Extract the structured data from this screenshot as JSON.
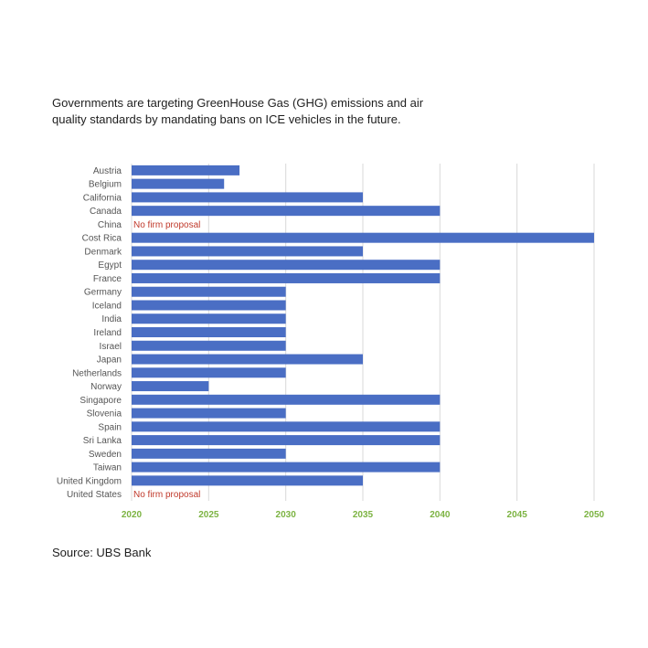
{
  "headline": {
    "line1": "Governments are targeting GreenHouse Gas (GHG) emissions and air",
    "line2": "quality standards by mandating bans on ICE vehicles in the future."
  },
  "source": "Source: UBS Bank",
  "chart_data": {
    "type": "bar",
    "orientation": "horizontal",
    "categories": [
      "Austria",
      "Belgium",
      "California",
      "Canada",
      "China",
      "Cost Rica",
      "Denmark",
      "Egypt",
      "France",
      "Germany",
      "Iceland",
      "India",
      "Ireland",
      "Israel",
      "Japan",
      "Netherlands",
      "Norway",
      "Singapore",
      "Slovenia",
      "Spain",
      "Sri Lanka",
      "Sweden",
      "Taiwan",
      "United Kingdom",
      "United States"
    ],
    "values": [
      2027,
      2026,
      2035,
      2040,
      null,
      2050,
      2035,
      2040,
      2040,
      2030,
      2030,
      2030,
      2030,
      2030,
      2035,
      2030,
      2025,
      2040,
      2030,
      2040,
      2040,
      2030,
      2040,
      2035,
      null
    ],
    "annotations": [
      {
        "category": "China",
        "text": "No firm proposal"
      },
      {
        "category": "United States",
        "text": "No firm proposal"
      }
    ],
    "xticks": [
      "2020",
      "2025",
      "2030",
      "2035",
      "2040",
      "2045",
      "2050"
    ],
    "xlim": [
      2020,
      2050
    ],
    "grid": "vertical",
    "colors": {
      "bar": "#4a6ec4",
      "grid": "#d9d9d9",
      "tick_label": "#7cb342",
      "category_label": "#555555",
      "annotation": "#c0392b"
    }
  }
}
